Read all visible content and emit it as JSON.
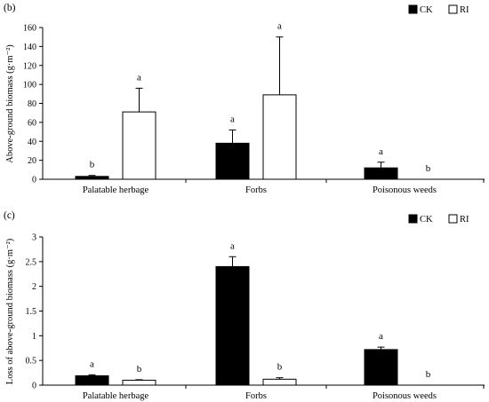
{
  "chart_data": [
    {
      "type": "bar",
      "panel_label": "(b)",
      "ylabel": "Above-ground biomass (g·m⁻²)",
      "ylim": [
        0,
        160
      ],
      "yticks": [
        0,
        20,
        40,
        60,
        80,
        100,
        120,
        140,
        160
      ],
      "categories": [
        "Palatable herbage",
        "Forbs",
        "Poisonous weeds"
      ],
      "legend_position": "top-right",
      "series": [
        {
          "name": "CK",
          "fill": "#000000",
          "values": [
            3,
            38,
            12
          ],
          "errors": [
            1,
            14,
            6
          ],
          "letters": [
            "b",
            "a",
            "a"
          ]
        },
        {
          "name": "RI",
          "fill": "#ffffff",
          "values": [
            71,
            89,
            0
          ],
          "errors": [
            25,
            61,
            0
          ],
          "letters": [
            "a",
            "a",
            "b"
          ]
        }
      ]
    },
    {
      "type": "bar",
      "panel_label": "(c)",
      "ylabel": "Loss of above-ground biomass (g·m⁻²)",
      "ylim": [
        0,
        3
      ],
      "yticks": [
        0,
        0.5,
        1,
        1.5,
        2,
        2.5,
        3
      ],
      "categories": [
        "Palatable herbage",
        "Forbs",
        "Poisonous weeds"
      ],
      "legend_position": "top-right",
      "series": [
        {
          "name": "CK",
          "fill": "#000000",
          "values": [
            0.19,
            2.4,
            0.72
          ],
          "errors": [
            0.02,
            0.2,
            0.05
          ],
          "letters": [
            "a",
            "a",
            "a"
          ]
        },
        {
          "name": "RI",
          "fill": "#ffffff",
          "values": [
            0.1,
            0.12,
            0
          ],
          "errors": [
            0.01,
            0.03,
            0
          ],
          "letters": [
            "b",
            "b",
            "b"
          ]
        }
      ]
    }
  ]
}
